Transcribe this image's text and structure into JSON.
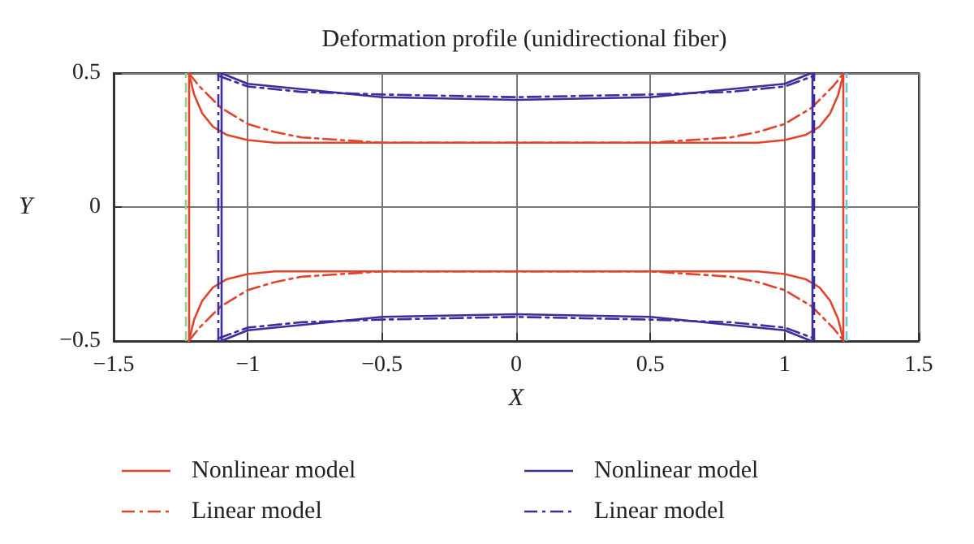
{
  "chart_data": {
    "type": "line",
    "title": "Deformation profile (unidirectional fiber)",
    "xlabel": "X",
    "ylabel": "Y",
    "xlim": [
      -1.5,
      1.5
    ],
    "xticks": [
      -1.5,
      -1,
      -0.5,
      0,
      0.5,
      1,
      1.5
    ],
    "ylim": [
      -0.5,
      0.5
    ],
    "yticks": [
      -0.5,
      0,
      0.5
    ],
    "grid": true,
    "legend": "bottom",
    "marker": "none",
    "series": [
      {
        "name": "Nonlinear model",
        "color": "#e0452c",
        "line_style": "solid",
        "x": [
          -1.22,
          -1.2,
          -1.17,
          -1.13,
          -1.08,
          -1,
          -0.9,
          -0.5,
          0,
          0.5,
          0.9,
          1,
          1.08,
          1.13,
          1.17,
          1.2,
          1.22
        ],
        "values": [
          0.5,
          0.42,
          0.35,
          0.3,
          0.27,
          0.25,
          0.24,
          0.24,
          0.24,
          0.24,
          0.24,
          0.25,
          0.27,
          0.3,
          0.35,
          0.42,
          0.5
        ]
      },
      {
        "name": "Linear model",
        "color": "#e0452c",
        "line_style": "dashdot",
        "x": [
          -1.22,
          -1.18,
          -1.1,
          -1,
          -0.9,
          -0.8,
          -0.5,
          0,
          0.5,
          0.8,
          0.9,
          1,
          1.1,
          1.18,
          1.22
        ],
        "values": [
          0.5,
          0.45,
          0.37,
          0.31,
          0.28,
          0.26,
          0.24,
          0.24,
          0.24,
          0.26,
          0.28,
          0.31,
          0.37,
          0.45,
          0.5
        ]
      },
      {
        "name": "Nonlinear model",
        "color": "#3b2f9a",
        "line_style": "solid",
        "x": [
          -1.1,
          -1,
          -0.8,
          -0.5,
          0,
          0.5,
          0.8,
          1,
          1.1
        ],
        "values": [
          0.5,
          0.46,
          0.44,
          0.41,
          0.4,
          0.41,
          0.44,
          0.46,
          0.5
        ]
      },
      {
        "name": "Linear model",
        "color": "#3b2f9a",
        "line_style": "dashdot",
        "x": [
          -1.11,
          -1,
          -0.8,
          -0.5,
          0,
          0.5,
          0.8,
          1,
          1.11
        ],
        "values": [
          0.49,
          0.45,
          0.43,
          0.42,
          0.41,
          0.42,
          0.43,
          0.45,
          0.49
        ]
      },
      {
        "color": "#e0452c",
        "line_style": "solid",
        "x": [
          -1.22,
          -1.2,
          -1.17,
          -1.13,
          -1.08,
          -1,
          -0.9,
          -0.5,
          0,
          0.5,
          0.9,
          1,
          1.08,
          1.13,
          1.17,
          1.2,
          1.22
        ],
        "values": [
          -0.5,
          -0.42,
          -0.35,
          -0.3,
          -0.27,
          -0.25,
          -0.24,
          -0.24,
          -0.24,
          -0.24,
          -0.24,
          -0.25,
          -0.27,
          -0.3,
          -0.35,
          -0.42,
          -0.5
        ]
      },
      {
        "color": "#e0452c",
        "line_style": "dashdot",
        "x": [
          -1.22,
          -1.18,
          -1.1,
          -1,
          -0.9,
          -0.8,
          -0.5,
          0,
          0.5,
          0.8,
          0.9,
          1,
          1.1,
          1.18,
          1.22
        ],
        "values": [
          -0.5,
          -0.45,
          -0.37,
          -0.31,
          -0.28,
          -0.26,
          -0.24,
          -0.24,
          -0.24,
          -0.26,
          -0.28,
          -0.31,
          -0.37,
          -0.45,
          -0.5
        ]
      },
      {
        "color": "#3b2f9a",
        "line_style": "solid",
        "x": [
          -1.1,
          -1,
          -0.8,
          -0.5,
          0,
          0.5,
          0.8,
          1,
          1.1
        ],
        "values": [
          -0.5,
          -0.46,
          -0.44,
          -0.41,
          -0.4,
          -0.41,
          -0.44,
          -0.46,
          -0.5
        ]
      },
      {
        "color": "#3b2f9a",
        "line_style": "dashdot",
        "x": [
          -1.11,
          -1,
          -0.8,
          -0.5,
          0,
          0.5,
          0.8,
          1,
          1.11
        ],
        "values": [
          -0.49,
          -0.45,
          -0.43,
          -0.42,
          -0.41,
          -0.42,
          -0.43,
          -0.45,
          -0.49
        ]
      }
    ],
    "ref_lines": [
      {
        "axis": "x",
        "value": -1.22,
        "color": "#e0452c",
        "line_style": "solid"
      },
      {
        "axis": "x",
        "value": 1.22,
        "color": "#e0452c",
        "line_style": "solid"
      },
      {
        "axis": "x",
        "value": -1.1,
        "color": "#3b2f9a",
        "line_style": "solid"
      },
      {
        "axis": "x",
        "value": 1.1,
        "color": "#3b2f9a",
        "line_style": "solid"
      },
      {
        "axis": "x",
        "value": -1.11,
        "color": "#3b2f9a",
        "line_style": "dashdot"
      },
      {
        "axis": "x",
        "value": 1.11,
        "color": "#3b2f9a",
        "line_style": "dashdot"
      },
      {
        "axis": "x",
        "value": -1.225,
        "color": "#8fd18a",
        "line_style": "dashed"
      },
      {
        "axis": "x",
        "value": 1.225,
        "color": "#5bc8e6",
        "line_style": "dashed"
      }
    ]
  }
}
